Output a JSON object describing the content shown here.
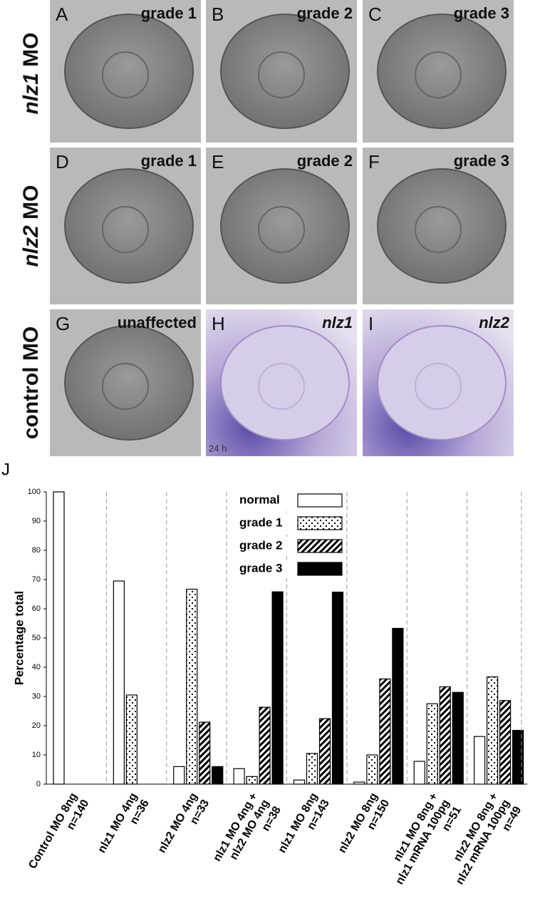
{
  "figure": {
    "rows": [
      {
        "italic": "nlz1",
        "text": "MO"
      },
      {
        "italic": "nlz2",
        "text": "MO"
      },
      {
        "text": "control MO"
      }
    ],
    "panels": [
      {
        "letter": "A",
        "label": "grade 1"
      },
      {
        "letter": "B",
        "label": "grade 2"
      },
      {
        "letter": "C",
        "label": "grade 3"
      },
      {
        "letter": "D",
        "label": "grade 1"
      },
      {
        "letter": "E",
        "label": "grade 2"
      },
      {
        "letter": "F",
        "label": "grade 3"
      },
      {
        "letter": "G",
        "label": "unaffected"
      },
      {
        "letter": "H",
        "label": "nlz1",
        "note": "24 h"
      },
      {
        "letter": "I",
        "label": "nlz2"
      }
    ]
  },
  "chart_data": {
    "type": "bar",
    "panel": "J",
    "ylabel": "Percentage total",
    "categories": [
      [
        "Control MO 8ng",
        "n=140"
      ],
      [
        "nlz1 MO 4ng",
        "n=36"
      ],
      [
        "nlz2 MO 4ng",
        "n=33"
      ],
      [
        "nlz1 MO 4ng +",
        "nlz2 MO 4ng",
        "n=38"
      ],
      [
        "nlz1 MO 8ng",
        "n=143"
      ],
      [
        "nlz2 MO 8ng",
        "n=150"
      ],
      [
        "nlz1 MO 8ng +",
        "nlz1 mRNA 100pg",
        "n=51"
      ],
      [
        "nlz2 MO 8ng +",
        "nlz2 mRNA 100pg",
        "n=49"
      ]
    ],
    "series": [
      {
        "name": "normal",
        "color": "#ffffff",
        "fill": "solid",
        "values": [
          100,
          69.5,
          6,
          5.3,
          1.4,
          0.7,
          7.8,
          16.3
        ]
      },
      {
        "name": "grade 1",
        "color": "#ffffff",
        "fill": "dotted",
        "values": [
          0,
          30.5,
          66.7,
          2.6,
          10.5,
          10,
          27.5,
          36.7
        ]
      },
      {
        "name": "grade 2",
        "color": "#ffffff",
        "fill": "hatched",
        "values": [
          0,
          0,
          21.2,
          26.3,
          22.4,
          36,
          33.3,
          28.6
        ]
      },
      {
        "name": "grade 3",
        "color": "#000000",
        "fill": "solid",
        "values": [
          0,
          0,
          6,
          65.8,
          65.7,
          53.3,
          31.4,
          18.4
        ]
      }
    ],
    "ylim": [
      0,
      100
    ],
    "yticks": [
      0,
      10,
      20,
      30,
      40,
      50,
      60,
      70,
      80,
      90,
      100
    ]
  }
}
